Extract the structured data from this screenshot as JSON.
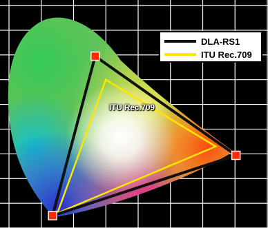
{
  "chart_data": {
    "type": "scatter",
    "title": "",
    "xlabel": "",
    "ylabel": "",
    "xlim": [
      0,
      0.8
    ],
    "ylim": [
      0,
      0.9
    ],
    "grid": true,
    "legend_position": "top-right",
    "series": [
      {
        "name": "DLA-RS1",
        "color": "#111111",
        "marker_color": "#ff2a00",
        "points": [
          {
            "x": 0.267,
            "y": 0.695
          },
          {
            "x": 0.703,
            "y": 0.294
          },
          {
            "x": 0.135,
            "y": 0.05
          }
        ]
      },
      {
        "name": "ITU Rec.709",
        "color": "#ffe600",
        "points": [
          {
            "x": 0.3,
            "y": 0.6
          },
          {
            "x": 0.64,
            "y": 0.33
          },
          {
            "x": 0.15,
            "y": 0.06
          }
        ]
      }
    ],
    "annotations": [
      {
        "text": "ITU Rec.709"
      }
    ]
  }
}
